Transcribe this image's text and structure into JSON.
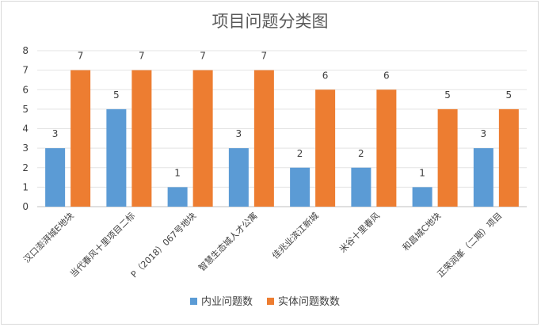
{
  "chart_data": {
    "type": "bar",
    "title": "项目问题分类图",
    "categories": [
      "汉口澎湃城E地块",
      "当代春风十里项目二标",
      "P（2018）067号地块",
      "智慧生态城人才公寓",
      "佳兆业滨江新城",
      "米谷十里春风",
      "和昌城C地块",
      "正荣润峯（二期）项目"
    ],
    "series": [
      {
        "name": "内业问题数",
        "values": [
          3,
          5,
          1,
          3,
          2,
          2,
          1,
          3
        ],
        "color": "#5b9bd5"
      },
      {
        "name": "实体问题数数",
        "values": [
          7,
          7,
          7,
          7,
          6,
          6,
          5,
          5
        ],
        "color": "#ed7d31"
      }
    ],
    "ylim": [
      0,
      8
    ],
    "yticks": [
      0,
      1,
      2,
      3,
      4,
      5,
      6,
      7,
      8
    ],
    "grid": true,
    "legend": "bottom",
    "xlabel": "",
    "ylabel": ""
  }
}
